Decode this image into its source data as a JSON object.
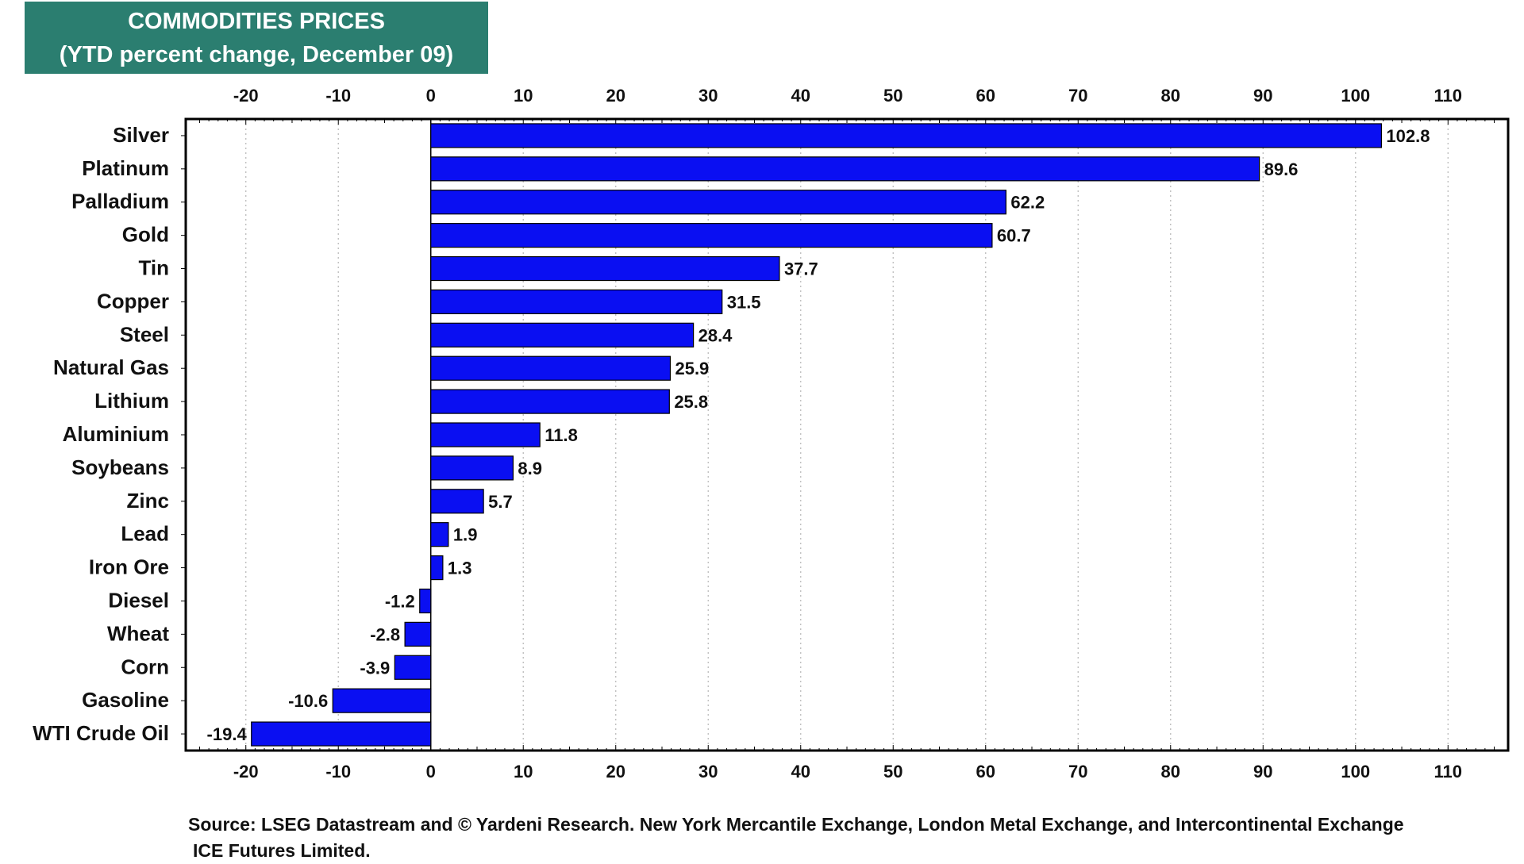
{
  "chart_data": {
    "type": "bar",
    "orientation": "horizontal",
    "title": "COMMODITIES PRICES",
    "subtitle": "(YTD percent change, December 09)",
    "categories": [
      "Silver",
      "Platinum",
      "Palladium",
      "Gold",
      "Tin",
      "Copper",
      "Steel",
      "Natural Gas",
      "Lithium",
      "Aluminium",
      "Soybeans",
      "Zinc",
      "Lead",
      "Iron Ore",
      "Diesel",
      "Wheat",
      "Corn",
      "Gasoline",
      "WTI Crude Oil"
    ],
    "values": [
      102.8,
      89.6,
      62.2,
      60.7,
      37.7,
      31.5,
      28.4,
      25.9,
      25.8,
      11.8,
      8.9,
      5.7,
      1.9,
      1.3,
      -1.2,
      -2.8,
      -3.9,
      -10.6,
      -19.4
    ],
    "value_labels": [
      "102.8",
      "89.6",
      "62.2",
      "60.7",
      "37.7",
      "31.5",
      "28.4",
      "25.9",
      "25.8",
      "11.8",
      "8.9",
      "5.7",
      "1.9",
      "1.3",
      "-1.2",
      "-2.8",
      "-3.9",
      "-10.6",
      "-19.4"
    ],
    "xlim": [
      -26.5,
      116.5
    ],
    "ticks": [
      -20,
      -10,
      0,
      10,
      20,
      30,
      40,
      50,
      60,
      70,
      80,
      90,
      100,
      110
    ],
    "tick_labels": [
      "-20",
      "-10",
      "0",
      "10",
      "20",
      "30",
      "40",
      "50",
      "60",
      "70",
      "80",
      "90",
      "100",
      "110"
    ],
    "grid": true,
    "bar_color": "#0a0ff2",
    "xlabel": "",
    "ylabel": ""
  },
  "source": {
    "line1": "Source: LSEG Datastream and © Yardeni Research. New York Mercantile Exchange, London Metal Exchange, and Intercontinental Exchange",
    "line2": "ICE Futures Limited."
  },
  "colors": {
    "title_bg": "#2b7e70",
    "title_text": "#ffffff",
    "frame": "#000000",
    "grid": "#bbbbbb"
  }
}
